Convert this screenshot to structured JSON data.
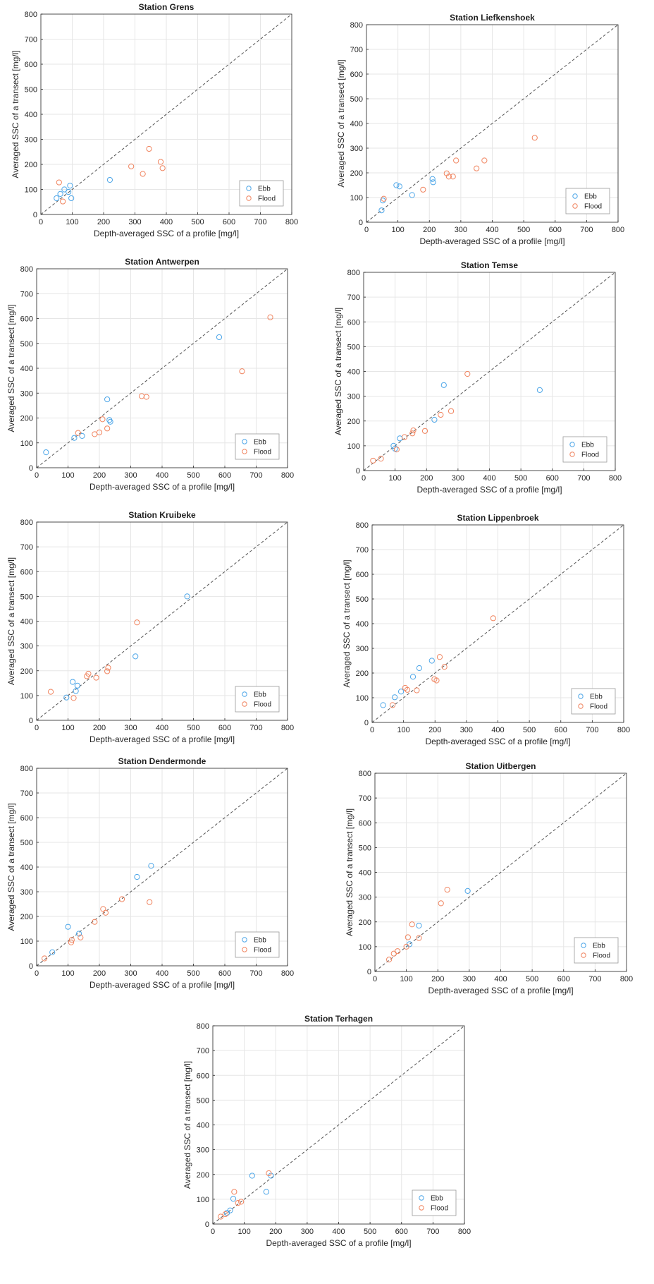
{
  "colors": {
    "ebb": "#4da6e8",
    "flood": "#f0845f",
    "grid": "#e6e6e6",
    "axis": "#262626"
  },
  "chart_data": [
    {
      "type": "scatter",
      "title": "Station Grens",
      "xlabel": "Depth-averaged SSC of a profile [mg/l]",
      "ylabel": "Averaged SSC of a transect [mg/l]",
      "xlim": [
        0,
        800
      ],
      "ylim": [
        0,
        800
      ],
      "xticks": [
        "0",
        "100",
        "200",
        "300",
        "400",
        "500",
        "600",
        "700",
        "800"
      ],
      "yticks": [
        "0",
        "100",
        "200",
        "300",
        "400",
        "500",
        "600",
        "700",
        "800"
      ],
      "grid": true,
      "legend_position": "bottom-right",
      "reference_line": "1:1 dashed",
      "series": [
        {
          "name": "Ebb",
          "points": [
            [
              50,
              65
            ],
            [
              62,
              82
            ],
            [
              75,
              100
            ],
            [
              88,
              90
            ],
            [
              93,
              115
            ],
            [
              97,
              65
            ],
            [
              220,
              138
            ]
          ]
        },
        {
          "name": "Flood",
          "points": [
            [
              58,
              128
            ],
            [
              70,
              52
            ],
            [
              288,
              192
            ],
            [
              325,
              162
            ],
            [
              345,
              262
            ],
            [
              382,
              210
            ],
            [
              388,
              185
            ]
          ]
        }
      ]
    },
    {
      "type": "scatter",
      "title": "Station Liefkenshoek",
      "xlabel": "Depth-averaged SSC of a profile [mg/l]",
      "ylabel": "Averaged SSC of a transect [mg/l]",
      "xlim": [
        0,
        800
      ],
      "ylim": [
        0,
        800
      ],
      "xticks": [
        "0",
        "100",
        "200",
        "300",
        "400",
        "500",
        "600",
        "700",
        "800"
      ],
      "yticks": [
        "0",
        "100",
        "200",
        "300",
        "400",
        "500",
        "600",
        "700",
        "800"
      ],
      "grid": true,
      "legend_position": "bottom-right",
      "reference_line": "1:1 dashed",
      "series": [
        {
          "name": "Ebb",
          "points": [
            [
              48,
              48
            ],
            [
              52,
              88
            ],
            [
              95,
              150
            ],
            [
              105,
              145
            ],
            [
              145,
              110
            ],
            [
              210,
              175
            ],
            [
              212,
              162
            ]
          ]
        },
        {
          "name": "Flood",
          "points": [
            [
              55,
              95
            ],
            [
              180,
              132
            ],
            [
              255,
              198
            ],
            [
              262,
              185
            ],
            [
              275,
              185
            ],
            [
              285,
              250
            ],
            [
              350,
              218
            ],
            [
              375,
              250
            ],
            [
              535,
              342
            ]
          ]
        }
      ]
    },
    {
      "type": "scatter",
      "title": "Station Antwerpen",
      "xlabel": "Depth-averaged SSC of a profile [mg/l]",
      "ylabel": "Averaged SSC of a transect [mg/l]",
      "xlim": [
        0,
        800
      ],
      "ylim": [
        0,
        800
      ],
      "xticks": [
        "0",
        "100",
        "200",
        "300",
        "400",
        "500",
        "600",
        "700",
        "800"
      ],
      "yticks": [
        "0",
        "100",
        "200",
        "300",
        "400",
        "500",
        "600",
        "700",
        "800"
      ],
      "grid": true,
      "legend_position": "bottom-right",
      "reference_line": "1:1 dashed",
      "series": [
        {
          "name": "Ebb",
          "points": [
            [
              30,
              62
            ],
            [
              120,
              120
            ],
            [
              145,
              128
            ],
            [
              225,
              275
            ],
            [
              232,
              192
            ],
            [
              235,
              185
            ],
            [
              582,
              525
            ]
          ]
        },
        {
          "name": "Flood",
          "points": [
            [
              132,
              140
            ],
            [
              185,
              135
            ],
            [
              200,
              142
            ],
            [
              210,
              195
            ],
            [
              225,
              158
            ],
            [
              335,
              288
            ],
            [
              350,
              285
            ],
            [
              655,
              388
            ],
            [
              745,
              605
            ]
          ]
        }
      ]
    },
    {
      "type": "scatter",
      "title": "Station Temse",
      "xlabel": "Depth-averaged SSC of a profile [mg/l]",
      "ylabel": "Averaged SSC of a transect [mg/l]",
      "xlim": [
        0,
        800
      ],
      "ylim": [
        0,
        800
      ],
      "xticks": [
        "0",
        "100",
        "200",
        "300",
        "400",
        "500",
        "600",
        "700",
        "800"
      ],
      "yticks": [
        "0",
        "100",
        "200",
        "300",
        "400",
        "500",
        "600",
        "700",
        "800"
      ],
      "grid": true,
      "legend_position": "bottom-right",
      "reference_line": "1:1 dashed",
      "series": [
        {
          "name": "Ebb",
          "points": [
            [
              95,
              100
            ],
            [
              100,
              88
            ],
            [
              115,
              130
            ],
            [
              225,
              205
            ],
            [
              255,
              345
            ],
            [
              560,
              325
            ]
          ]
        },
        {
          "name": "Flood",
          "points": [
            [
              30,
              40
            ],
            [
              55,
              48
            ],
            [
              105,
              85
            ],
            [
              130,
              135
            ],
            [
              155,
              150
            ],
            [
              158,
              162
            ],
            [
              195,
              160
            ],
            [
              245,
              225
            ],
            [
              278,
              240
            ],
            [
              330,
              390
            ]
          ]
        }
      ]
    },
    {
      "type": "scatter",
      "title": "Station Kruibeke",
      "xlabel": "Depth-averaged SSC of a profile [mg/l]",
      "ylabel": "Averaged SSC of a transect [mg/l]",
      "xlim": [
        0,
        800
      ],
      "ylim": [
        0,
        800
      ],
      "xticks": [
        "0",
        "100",
        "200",
        "300",
        "400",
        "500",
        "600",
        "700",
        "800"
      ],
      "yticks": [
        "0",
        "100",
        "200",
        "300",
        "400",
        "500",
        "600",
        "700",
        "800"
      ],
      "grid": true,
      "legend_position": "bottom-right",
      "reference_line": "1:1 dashed",
      "series": [
        {
          "name": "Ebb",
          "points": [
            [
              95,
              92
            ],
            [
              115,
              155
            ],
            [
              125,
              118
            ],
            [
              130,
              140
            ],
            [
              315,
              258
            ],
            [
              480,
              500
            ]
          ]
        },
        {
          "name": "Flood",
          "points": [
            [
              45,
              115
            ],
            [
              118,
              90
            ],
            [
              160,
              178
            ],
            [
              165,
              188
            ],
            [
              190,
              172
            ],
            [
              225,
              198
            ],
            [
              228,
              212
            ],
            [
              320,
              395
            ]
          ]
        }
      ]
    },
    {
      "type": "scatter",
      "title": "Station Lippenbroek",
      "xlabel": "Depth-averaged SSC of a profile [mg/l]",
      "ylabel": "Averaged SSC of a transect [mg/l]",
      "xlim": [
        0,
        800
      ],
      "ylim": [
        0,
        800
      ],
      "xticks": [
        "0",
        "100",
        "200",
        "300",
        "400",
        "500",
        "600",
        "700",
        "800"
      ],
      "yticks": [
        "0",
        "100",
        "200",
        "300",
        "400",
        "500",
        "600",
        "700",
        "800"
      ],
      "grid": true,
      "legend_position": "bottom-right",
      "reference_line": "1:1 dashed",
      "series": [
        {
          "name": "Ebb",
          "points": [
            [
              35,
              70
            ],
            [
              72,
              102
            ],
            [
              92,
              125
            ],
            [
              130,
              185
            ],
            [
              150,
              220
            ],
            [
              190,
              250
            ]
          ]
        },
        {
          "name": "Flood",
          "points": [
            [
              65,
              70
            ],
            [
              105,
              140
            ],
            [
              112,
              132
            ],
            [
              142,
              130
            ],
            [
              198,
              175
            ],
            [
              205,
              170
            ],
            [
              215,
              265
            ],
            [
              230,
              225
            ],
            [
              385,
              422
            ]
          ]
        }
      ]
    },
    {
      "type": "scatter",
      "title": "Station Dendermonde",
      "xlabel": "Depth-averaged SSC of a profile [mg/l]",
      "ylabel": "Averaged SSC of a transect [mg/l]",
      "xlim": [
        0,
        800
      ],
      "ylim": [
        0,
        800
      ],
      "xticks": [
        "0",
        "100",
        "200",
        "300",
        "400",
        "500",
        "600",
        "700",
        "800"
      ],
      "yticks": [
        "0",
        "100",
        "200",
        "300",
        "400",
        "500",
        "600",
        "700",
        "800"
      ],
      "grid": true,
      "legend_position": "bottom-right",
      "reference_line": "1:1 dashed",
      "series": [
        {
          "name": "Ebb",
          "points": [
            [
              50,
              55
            ],
            [
              100,
              158
            ],
            [
              135,
              130
            ],
            [
              320,
              360
            ],
            [
              365,
              405
            ]
          ]
        },
        {
          "name": "Flood",
          "points": [
            [
              25,
              30
            ],
            [
              110,
              95
            ],
            [
              112,
              105
            ],
            [
              140,
              115
            ],
            [
              185,
              178
            ],
            [
              212,
              230
            ],
            [
              220,
              215
            ],
            [
              272,
              270
            ],
            [
              360,
              258
            ]
          ]
        }
      ]
    },
    {
      "type": "scatter",
      "title": "Station Uitbergen",
      "xlabel": "Depth-averaged SSC of a profile [mg/l]",
      "ylabel": "Averaged SSC of a transect [mg/l]",
      "xlim": [
        0,
        800
      ],
      "ylim": [
        0,
        800
      ],
      "xticks": [
        "0",
        "100",
        "200",
        "300",
        "400",
        "500",
        "600",
        "700",
        "800"
      ],
      "yticks": [
        "0",
        "100",
        "200",
        "300",
        "400",
        "500",
        "600",
        "700",
        "800"
      ],
      "grid": true,
      "legend_position": "bottom-right",
      "reference_line": "1:1 dashed",
      "series": [
        {
          "name": "Ebb",
          "points": [
            [
              110,
              110
            ],
            [
              140,
              185
            ],
            [
              295,
              325
            ]
          ]
        },
        {
          "name": "Flood",
          "points": [
            [
              45,
              48
            ],
            [
              60,
              72
            ],
            [
              72,
              82
            ],
            [
              100,
              100
            ],
            [
              105,
              138
            ],
            [
              118,
              190
            ],
            [
              140,
              135
            ],
            [
              210,
              275
            ],
            [
              230,
              330
            ]
          ]
        }
      ]
    },
    {
      "type": "scatter",
      "title": "Station Terhagen",
      "xlabel": "Depth-averaged SSC of a profile [mg/l]",
      "ylabel": "Averaged SSC of a transect [mg/l]",
      "xlim": [
        0,
        800
      ],
      "ylim": [
        0,
        800
      ],
      "xticks": [
        "0",
        "100",
        "200",
        "300",
        "400",
        "500",
        "600",
        "700",
        "800"
      ],
      "yticks": [
        "0",
        "100",
        "200",
        "300",
        "400",
        "500",
        "600",
        "700",
        "800"
      ],
      "grid": true,
      "legend_position": "bottom-right",
      "reference_line": "1:1 dashed",
      "series": [
        {
          "name": "Ebb",
          "points": [
            [
              45,
              45
            ],
            [
              55,
              55
            ],
            [
              65,
              102
            ],
            [
              125,
              195
            ],
            [
              170,
              130
            ],
            [
              185,
              195
            ]
          ]
        },
        {
          "name": "Flood",
          "points": [
            [
              25,
              30
            ],
            [
              40,
              40
            ],
            [
              68,
              130
            ],
            [
              80,
              85
            ],
            [
              90,
              90
            ],
            [
              178,
              205
            ]
          ]
        }
      ]
    }
  ]
}
